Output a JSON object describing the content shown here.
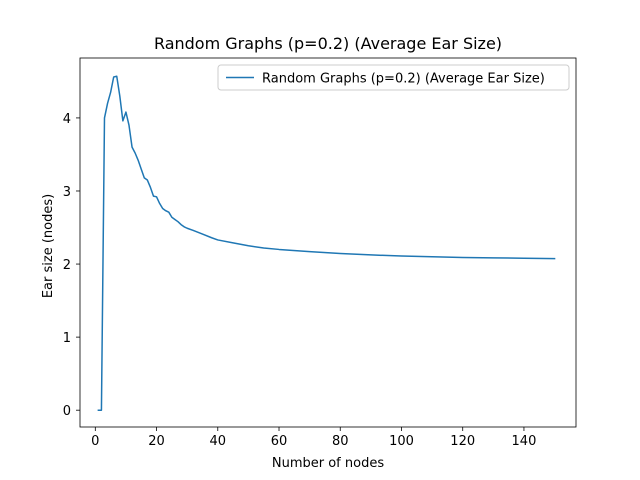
{
  "chart_data": {
    "type": "line",
    "title": "Random Graphs (p=0.2) (Average Ear Size)",
    "xlabel": "Number of nodes",
    "ylabel": "Ear size (nodes)",
    "xlim": [
      -5,
      157
    ],
    "ylim": [
      -0.23,
      4.82
    ],
    "xticks": [
      0,
      20,
      40,
      60,
      80,
      100,
      120,
      140
    ],
    "yticks": [
      0,
      1,
      2,
      3,
      4
    ],
    "grid": false,
    "legend_position": "top-right",
    "series": [
      {
        "name": "Random Graphs (p=0.2) (Average Ear Size)",
        "color": "#1f77b4",
        "x": [
          1,
          2,
          3,
          4,
          5,
          6,
          7,
          8,
          9,
          10,
          11,
          12,
          13,
          14,
          15,
          16,
          17,
          18,
          19,
          20,
          21,
          22,
          23,
          24,
          25,
          26,
          27,
          28,
          29,
          30,
          32,
          35,
          38,
          40,
          45,
          50,
          55,
          60,
          70,
          80,
          90,
          100,
          110,
          120,
          130,
          140,
          150
        ],
        "y": [
          0,
          0,
          4.0,
          4.2,
          4.35,
          4.56,
          4.57,
          4.3,
          3.96,
          4.08,
          3.9,
          3.6,
          3.52,
          3.42,
          3.3,
          3.18,
          3.15,
          3.05,
          2.93,
          2.92,
          2.83,
          2.76,
          2.73,
          2.71,
          2.64,
          2.61,
          2.58,
          2.54,
          2.51,
          2.49,
          2.46,
          2.41,
          2.36,
          2.33,
          2.29,
          2.25,
          2.22,
          2.2,
          2.17,
          2.145,
          2.125,
          2.11,
          2.1,
          2.09,
          2.085,
          2.08,
          2.075
        ]
      }
    ]
  }
}
